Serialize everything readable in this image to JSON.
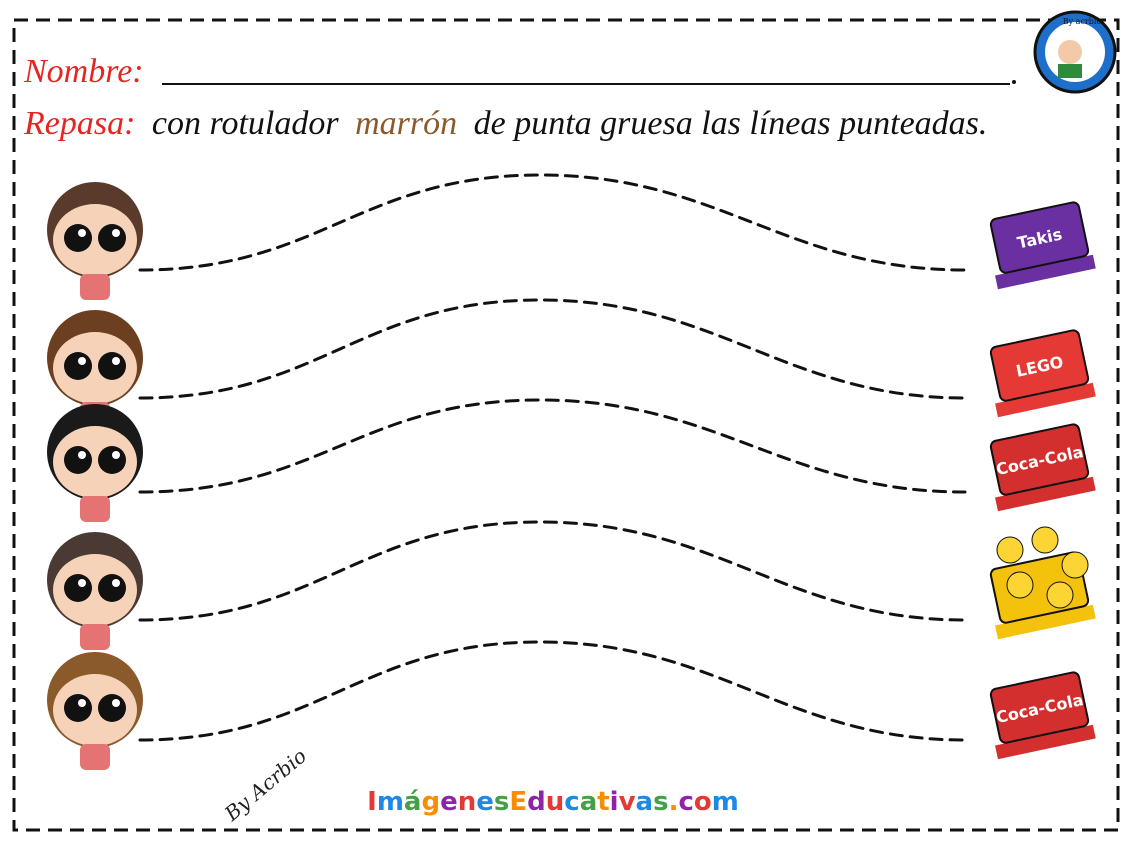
{
  "header": {
    "name_label": "Nombre:",
    "instruction_label": "Repasa:",
    "instruction_parts": [
      "con rotulador",
      "marrón",
      "de punta gruesa las líneas punteadas."
    ]
  },
  "logo": {
    "text": "By acrbio"
  },
  "items": [
    {
      "label": "Takis"
    },
    {
      "label": "LEGO"
    },
    {
      "label": "Coca-Cola"
    },
    {
      "label": null
    },
    {
      "label": "Coca-Cola"
    }
  ],
  "footer": {
    "signature": "By Acrbio",
    "site": "ImágenesEducativas.com"
  }
}
